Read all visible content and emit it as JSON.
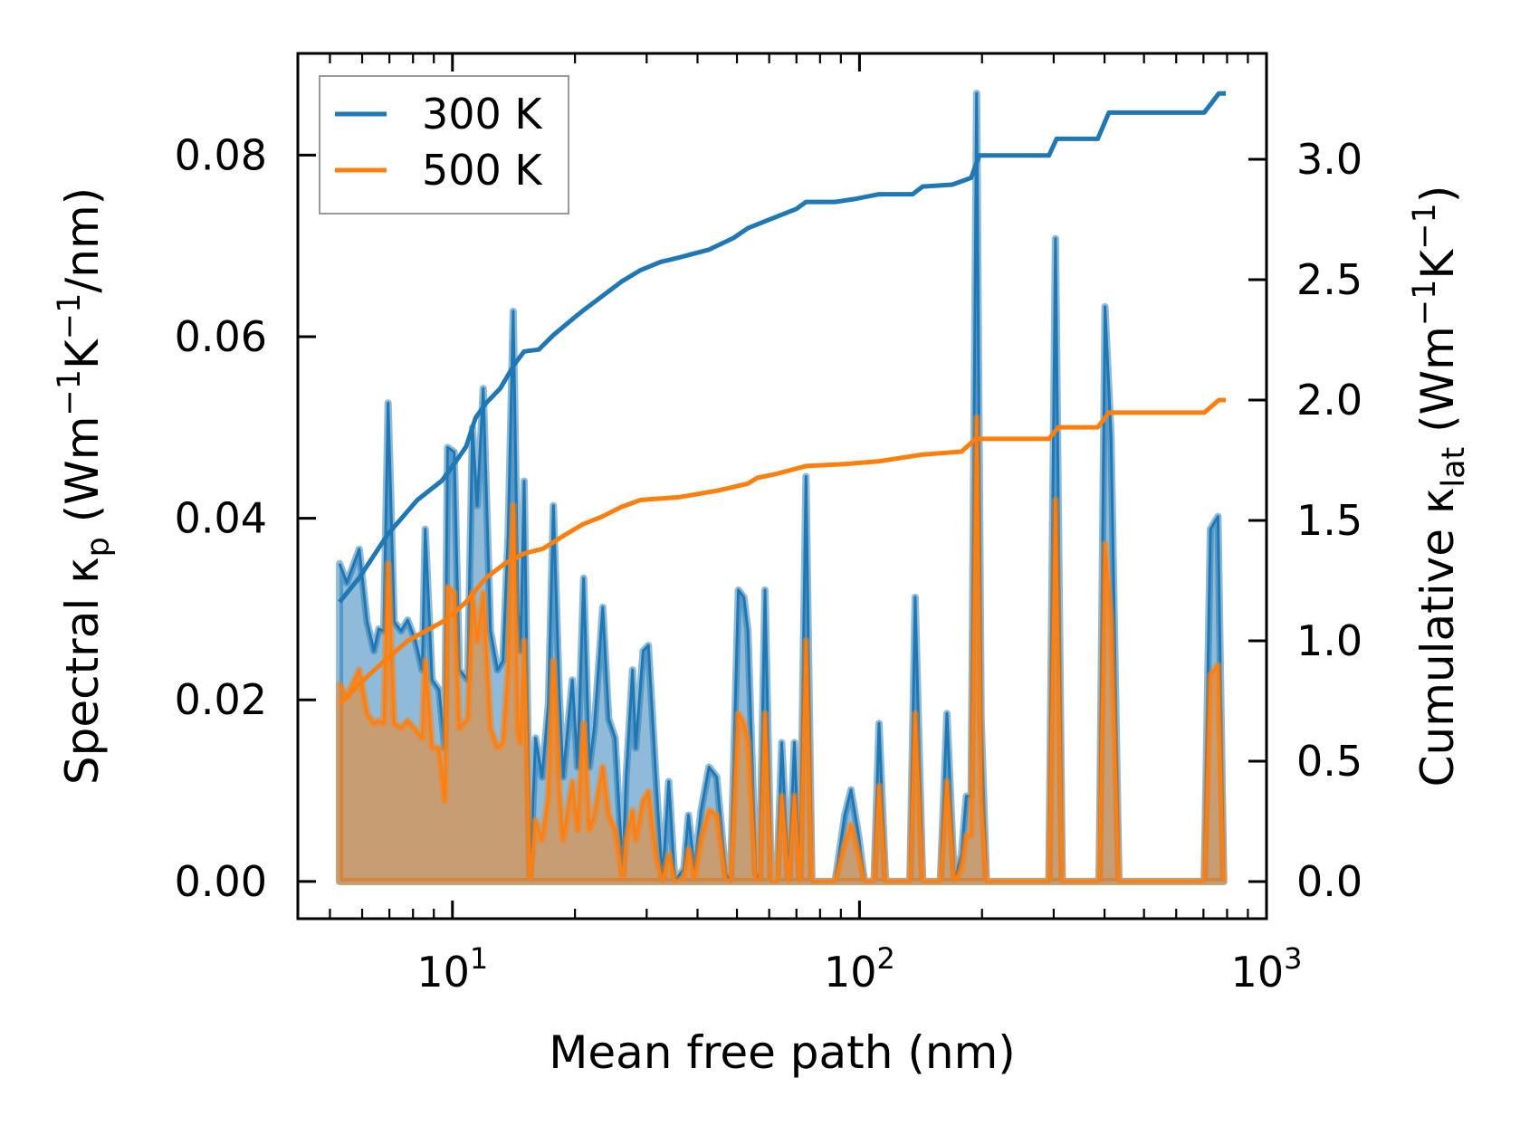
{
  "chart_data": {
    "type": "line",
    "xlabel": "Mean free path (nm)",
    "xscale": "log",
    "xlim": [
      4.17,
      1000
    ],
    "xticks": [
      {
        "value": 10,
        "base": "10",
        "exp": "1"
      },
      {
        "value": 100,
        "base": "10",
        "exp": "2"
      },
      {
        "value": 1000,
        "base": "10",
        "exp": "3"
      }
    ],
    "ylabel_left": [
      {
        "t": "Spectral κ"
      },
      {
        "t": "p",
        "sub": true
      },
      {
        "t": " (Wm"
      },
      {
        "t": "−1",
        "sup": true
      },
      {
        "t": "K"
      },
      {
        "t": "−1",
        "sup": true
      },
      {
        "t": "/nm)"
      }
    ],
    "ylim_left": [
      -0.0041,
      0.0912
    ],
    "yticks_left": [
      {
        "value": 0,
        "label": "0.00"
      },
      {
        "value": 0.02,
        "label": "0.02"
      },
      {
        "value": 0.04,
        "label": "0.04"
      },
      {
        "value": 0.06,
        "label": "0.06"
      },
      {
        "value": 0.08,
        "label": "0.08"
      }
    ],
    "ylabel_right": [
      {
        "t": "Cumulative κ"
      },
      {
        "t": "lat",
        "sub": true
      },
      {
        "t": " (Wm"
      },
      {
        "t": "−1",
        "sup": true
      },
      {
        "t": "K"
      },
      {
        "t": "−1",
        "sup": true
      },
      {
        "t": ")"
      }
    ],
    "ylim_right": [
      -0.154,
      3.44
    ],
    "yticks_right": [
      {
        "value": 0,
        "label": "0.0"
      },
      {
        "value": 0.5,
        "label": "0.5"
      },
      {
        "value": 1.0,
        "label": "1.0"
      },
      {
        "value": 1.5,
        "label": "1.5"
      },
      {
        "value": 2.0,
        "label": "2.0"
      },
      {
        "value": 2.5,
        "label": "2.5"
      },
      {
        "value": 3.0,
        "label": "3.0"
      }
    ],
    "legend": {
      "placement": "top-left",
      "entries": [
        {
          "label": "300 K",
          "color": "#1f77b4"
        },
        {
          "label": "500 K",
          "color": "#ff7f0e"
        }
      ]
    },
    "grid": false,
    "spectral": {
      "x": [
        5.28,
        5.5,
        5.9,
        6.17,
        6.41,
        6.59,
        6.78,
        6.95,
        7.19,
        7.48,
        7.76,
        8.11,
        8.43,
        8.57,
        8.91,
        9.27,
        9.57,
        9.73,
        10.1,
        10.4,
        10.9,
        11.2,
        11.5,
        11.9,
        12.4,
        12.9,
        13.3,
        13.7,
        14.1,
        14.5,
        14.7,
        15.0,
        15.5,
        16.0,
        16.6,
        17.2,
        17.7,
        18.3,
        18.7,
        19.7,
        20.3,
        21.0,
        21.7,
        22.3,
        23.4,
        24.2,
        25.1,
        26.2,
        26.7,
        27.7,
        28.2,
        29.4,
        30.3,
        31.7,
        32.8,
        34.0,
        35.2,
        37.0,
        38.0,
        39.3,
        40.8,
        42.7,
        44.6,
        46.9,
        48.2,
        50.4,
        52.0,
        53.2,
        55.6,
        56.8,
        58.6,
        60.7,
        62.7,
        64.4,
        67.0,
        69.2,
        71.4,
        73.9,
        76.4,
        87.1,
        92.0,
        95.3,
        99.5,
        102.8,
        108.6,
        111.7,
        115.9,
        133,
        137,
        143,
        158,
        164,
        171,
        178,
        183,
        188,
        194,
        199,
        205,
        292,
        303,
        315,
        388,
        401,
        415,
        434,
        703,
        728,
        760,
        785
      ],
      "series": [
        {
          "name": "300 K",
          "color": "#1f77b4",
          "values": [
            0.035,
            0.0329,
            0.0366,
            0.0286,
            0.0254,
            0.0278,
            0.0276,
            0.0527,
            0.0286,
            0.0276,
            0.0288,
            0.0265,
            0.0233,
            0.0388,
            0.0222,
            0.0211,
            0.0147,
            0.0478,
            0.0473,
            0.0233,
            0.0222,
            0.05,
            0.0414,
            0.0543,
            0.0276,
            0.0233,
            0.0243,
            0.0382,
            0.0628,
            0.0297,
            0.0254,
            0.0441,
            0.0005,
            0.0158,
            0.0115,
            0.0195,
            0.0414,
            0.0206,
            0.0115,
            0.0222,
            0.0126,
            0.0334,
            0.0126,
            0.0169,
            0.0302,
            0.0179,
            0.0158,
            0.0009,
            0.0115,
            0.0233,
            0.0147,
            0.0254,
            0.026,
            0.0105,
            0,
            0.011,
            0,
            0.0014,
            0.0073,
            0.0014,
            0.0078,
            0.0126,
            0.0115,
            0.0009,
            0,
            0.0321,
            0.0313,
            0.0276,
            0.0009,
            0.0001,
            0.0321,
            0,
            0,
            0.0153,
            0,
            0.0153,
            0,
            0.0446,
            0,
            0,
            0.0073,
            0.0101,
            0.0051,
            0,
            0,
            0.0174,
            0,
            0,
            0.0313,
            0,
            0,
            0.0185,
            0,
            0.003,
            0.0094,
            0.0094,
            0.0868,
            0.0179,
            0,
            0,
            0.0708,
            0,
            0,
            0.0633,
            0.0489,
            0,
            0,
            0.0388,
            0.0402,
            0
          ]
        },
        {
          "name": "500 K",
          "color": "#ff7f0e",
          "values": [
            0.0217,
            0.0203,
            0.0233,
            0.0185,
            0.0174,
            0.0177,
            0.0174,
            0.035,
            0.0174,
            0.0169,
            0.0177,
            0.0167,
            0.0158,
            0.0243,
            0.0147,
            0.0147,
            0.0089,
            0.0324,
            0.0318,
            0.0169,
            0.0179,
            0.0318,
            0.0265,
            0.0318,
            0.0169,
            0.0147,
            0.0153,
            0.0233,
            0.0414,
            0.0163,
            0.0153,
            0.0265,
            0.0003,
            0.0067,
            0.0046,
            0.0094,
            0.0243,
            0.0099,
            0.0046,
            0.011,
            0.0057,
            0.0174,
            0.0057,
            0.0073,
            0.0126,
            0.0073,
            0.0057,
            0.0003,
            0.0046,
            0.0078,
            0.0046,
            0.0089,
            0.0099,
            0.0025,
            0,
            0.003,
            0,
            0.0003,
            0.0035,
            0.0003,
            0.0046,
            0.0078,
            0.0073,
            0.0003,
            0,
            0.0185,
            0.0174,
            0.0153,
            0.0003,
            0.0001,
            0.0185,
            0,
            0,
            0.0094,
            0,
            0.0094,
            0,
            0.0265,
            0,
            0,
            0.0041,
            0.0062,
            0.003,
            0,
            0,
            0.0105,
            0,
            0,
            0.0185,
            0,
            0,
            0.011,
            0,
            0.0014,
            0.0051,
            0.0051,
            0.0511,
            0.0094,
            0,
            0,
            0.042,
            0,
            0,
            0.0372,
            0.0286,
            0,
            0,
            0.0227,
            0.0238,
            0
          ]
        }
      ]
    },
    "cumulative": [
      {
        "name": "300 K",
        "color": "#1f77b4",
        "x": [
          5.28,
          5.9,
          6.95,
          8.2,
          9.42,
          10.2,
          10.8,
          11.4,
          12.1,
          13.1,
          14.2,
          15.0,
          16.3,
          17.7,
          19.8,
          20.9,
          23.3,
          26.0,
          29.0,
          32.4,
          36.2,
          42.7,
          49.0,
          53.2,
          59.3,
          70.0,
          73.9,
          87.1,
          97.3,
          111.7,
          135,
          143,
          169,
          188,
          197,
          292,
          305,
          385,
          410,
          703,
          764,
          794
        ],
        "values": [
          1.161,
          1.262,
          1.444,
          1.585,
          1.665,
          1.746,
          1.806,
          1.927,
          1.988,
          2.048,
          2.149,
          2.202,
          2.21,
          2.27,
          2.339,
          2.371,
          2.431,
          2.492,
          2.54,
          2.573,
          2.593,
          2.625,
          2.673,
          2.714,
          2.746,
          2.794,
          2.823,
          2.823,
          2.835,
          2.855,
          2.855,
          2.887,
          2.895,
          2.923,
          3.016,
          3.016,
          3.085,
          3.085,
          3.194,
          3.194,
          3.274,
          3.274
        ]
      },
      {
        "name": "500 K",
        "color": "#ff7f0e",
        "x": [
          5.28,
          6.24,
          7.76,
          9.68,
          10.8,
          12.1,
          13.5,
          15.0,
          16.7,
          18.7,
          20.9,
          23.3,
          26.0,
          29.0,
          36.2,
          45.1,
          53.2,
          56.1,
          62.7,
          73.9,
          92.0,
          111.7,
          143,
          178,
          193,
          292,
          308,
          385,
          410,
          703,
          764,
          794
        ],
        "values": [
          0.738,
          0.859,
          1.0,
          1.089,
          1.161,
          1.262,
          1.323,
          1.363,
          1.383,
          1.435,
          1.484,
          1.516,
          1.556,
          1.585,
          1.597,
          1.625,
          1.653,
          1.677,
          1.694,
          1.726,
          1.734,
          1.746,
          1.774,
          1.786,
          1.839,
          1.839,
          1.887,
          1.887,
          1.948,
          1.948,
          2.0,
          2.0
        ]
      }
    ]
  }
}
